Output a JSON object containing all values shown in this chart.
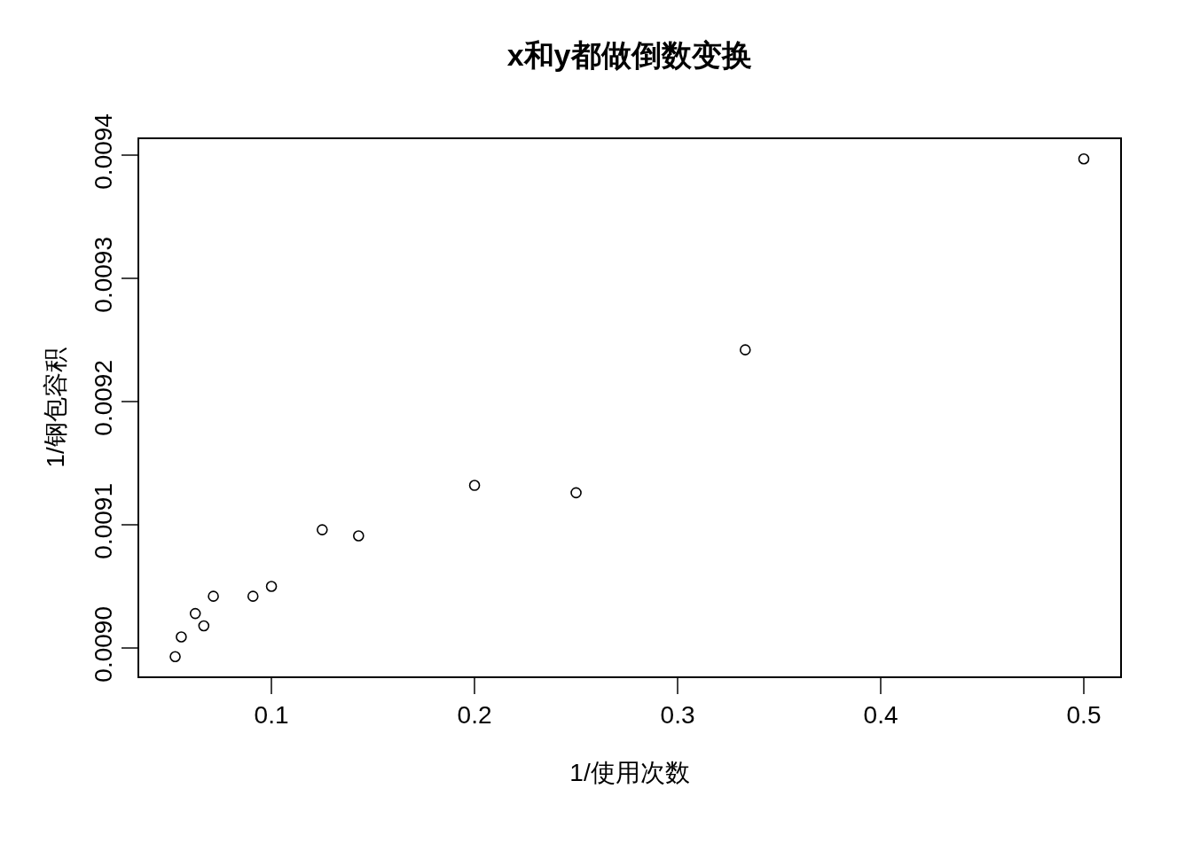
{
  "chart_data": {
    "type": "scatter",
    "title": "x和y都做倒数变换",
    "xlabel": "1/使用次数",
    "ylabel": "1/钢包容积",
    "x": [
      0.0526,
      0.0556,
      0.0625,
      0.0667,
      0.0714,
      0.0909,
      0.1,
      0.125,
      0.1429,
      0.2,
      0.25,
      0.3333,
      0.5
    ],
    "values": [
      0.008993,
      0.009009,
      0.009028,
      0.009018,
      0.009042,
      0.009042,
      0.00905,
      0.009096,
      0.009091,
      0.009132,
      0.009126,
      0.009242,
      0.009397
    ],
    "color": "#000000",
    "marker": "circle",
    "xlim": [
      0.0349,
      0.5179
    ],
    "ylim": [
      0.008977,
      0.009413
    ],
    "xticks": [
      0.1,
      0.2,
      0.3,
      0.4,
      0.5
    ],
    "yticks": [
      {
        "value": 0.009,
        "label": "0.0090"
      },
      {
        "value": 0.0091,
        "label": "0.0091"
      },
      {
        "value": 0.0092,
        "label": "0.0092"
      },
      {
        "value": 0.0093,
        "label": "0.0093"
      },
      {
        "value": 0.0094,
        "label": "0.0094"
      }
    ],
    "grid": false
  }
}
